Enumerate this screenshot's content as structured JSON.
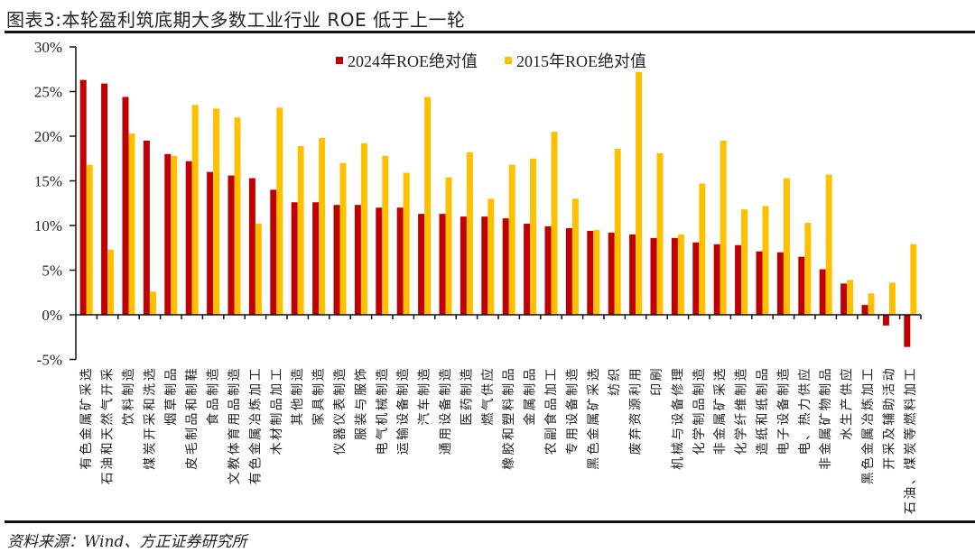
{
  "title": "图表3:本轮盈利筑底期大多数工业行业 ROE 低于上一轮",
  "source": "资料来源：Wind、方正证券研究所",
  "chart_data": {
    "type": "bar",
    "title": "图表3:本轮盈利筑底期大多数工业行业 ROE 低于上一轮",
    "xlabel": "",
    "ylabel": "",
    "unit": "%",
    "ylim": [
      -5,
      30
    ],
    "yticks": [
      -5,
      0,
      5,
      10,
      15,
      20,
      25,
      30
    ],
    "ytick_labels": [
      "-5%",
      "0%",
      "5%",
      "10%",
      "15%",
      "20%",
      "25%",
      "30%"
    ],
    "grid": false,
    "legend": "top-center",
    "categories": [
      "有色金属矿采选",
      "石油和天然气开采",
      "饮料制造",
      "煤炭开采和洗选",
      "烟草制品",
      "皮毛制品和制鞋",
      "食品制造",
      "文教体育用品制造",
      "有色金属冶炼加工",
      "木材制品加工",
      "其他制造",
      "家具制造",
      "仪器仪表制造",
      "服装与服饰",
      "电气机械制造",
      "运输设备制造",
      "汽车制造",
      "通用设备制造",
      "医药制造",
      "燃气供应",
      "橡胶和塑料制品",
      "金属制品",
      "农副食品加工",
      "专用设备制造",
      "黑色金属矿采选",
      "纺织",
      "废弃资源利用",
      "印刷",
      "机械与设备修理",
      "化学制品制造",
      "非金属矿采选",
      "化学纤维制造",
      "造纸和纸制品",
      "电子设备制造",
      "电、热力供应",
      "非金属矿物制品",
      "水生产供应",
      "黑色金属冶炼加工",
      "开采及辅助活动",
      "石油、煤炭等燃料加工"
    ],
    "series": [
      {
        "name": "2024年ROE绝对值",
        "color": "#C00000",
        "values": [
          26.3,
          25.9,
          24.4,
          19.5,
          18.0,
          17.2,
          16.0,
          15.6,
          15.3,
          14.0,
          12.6,
          12.6,
          12.3,
          12.3,
          12.0,
          12.0,
          11.3,
          11.3,
          11.0,
          11.0,
          10.8,
          10.2,
          9.9,
          9.7,
          9.4,
          9.2,
          9.0,
          8.6,
          8.6,
          8.1,
          7.9,
          7.8,
          7.1,
          7.0,
          6.5,
          5.1,
          3.5,
          1.1,
          -1.2,
          -3.6
        ]
      },
      {
        "name": "2015年ROE绝对值",
        "color": "#FFC000",
        "values": [
          16.8,
          7.3,
          20.3,
          2.6,
          17.8,
          23.5,
          23.1,
          22.1,
          10.2,
          23.2,
          18.9,
          19.8,
          17.0,
          19.2,
          17.8,
          15.9,
          24.4,
          15.4,
          18.2,
          13.0,
          16.8,
          17.5,
          20.5,
          13.0,
          9.5,
          18.6,
          27.2,
          18.1,
          9.0,
          14.7,
          19.5,
          11.8,
          12.2,
          15.3,
          10.3,
          15.7,
          3.9,
          2.4,
          3.6,
          7.9
        ]
      }
    ]
  }
}
